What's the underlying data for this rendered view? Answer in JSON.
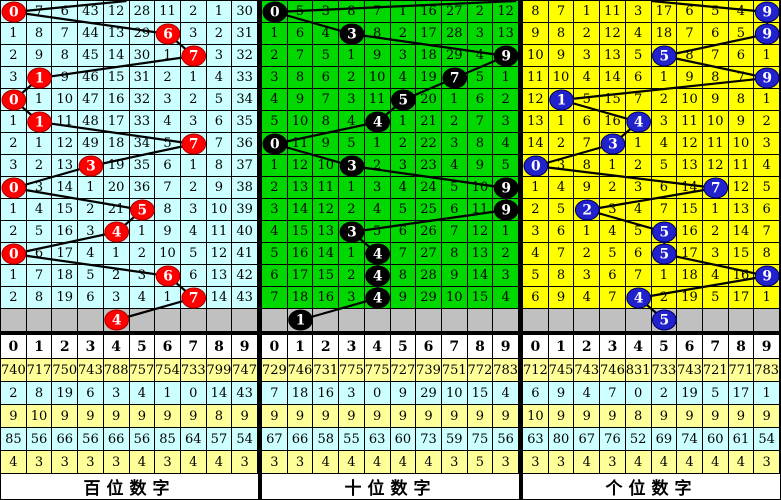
{
  "chart_data": {
    "type": "table",
    "title": "3D lottery digit trend chart (omission counts, drawn digit circled per row)",
    "digits_header": [
      "0",
      "1",
      "2",
      "3",
      "4",
      "5",
      "6",
      "7",
      "8",
      "9"
    ],
    "drawn_numbers_by_row": [
      "009",
      "639",
      "795",
      "179",
      "051",
      "144",
      "703",
      "330",
      "097",
      "592",
      "435",
      "045",
      "649",
      "744"
    ],
    "pending_number": "415",
    "panels": [
      {
        "name": "hundreds",
        "footer_label": "百位数字",
        "bg": "#ccffff",
        "circle": "#ff0000",
        "circle_edge": "#aa0000",
        "incoming_top_x": 127,
        "drawn_sequence": [
          0,
          6,
          7,
          1,
          0,
          1,
          7,
          3,
          0,
          5,
          4,
          0,
          6,
          7
        ],
        "pending_digit": 4,
        "grid_rows": [
          [
            "0",
            "7",
            "6",
            "43",
            "12",
            "28",
            "11",
            "2",
            "1",
            "30"
          ],
          [
            "1",
            "8",
            "7",
            "44",
            "13",
            "29",
            "6",
            "3",
            "2",
            "31"
          ],
          [
            "2",
            "9",
            "8",
            "45",
            "14",
            "30",
            "1",
            "7",
            "3",
            "32"
          ],
          [
            "3",
            "1",
            "9",
            "46",
            "15",
            "31",
            "2",
            "1",
            "4",
            "33"
          ],
          [
            "0",
            "1",
            "10",
            "47",
            "16",
            "32",
            "3",
            "2",
            "5",
            "34"
          ],
          [
            "1",
            "1",
            "11",
            "48",
            "17",
            "33",
            "4",
            "3",
            "6",
            "35"
          ],
          [
            "2",
            "1",
            "12",
            "49",
            "18",
            "34",
            "5",
            "7",
            "7",
            "36"
          ],
          [
            "3",
            "2",
            "13",
            "3",
            "19",
            "35",
            "6",
            "1",
            "8",
            "37"
          ],
          [
            "0",
            "3",
            "14",
            "1",
            "20",
            "36",
            "7",
            "2",
            "9",
            "38"
          ],
          [
            "1",
            "4",
            "15",
            "2",
            "21",
            "5",
            "8",
            "3",
            "10",
            "39"
          ],
          [
            "2",
            "5",
            "16",
            "3",
            "4",
            "1",
            "9",
            "4",
            "11",
            "40"
          ],
          [
            "0",
            "6",
            "17",
            "4",
            "1",
            "2",
            "10",
            "5",
            "12",
            "41"
          ],
          [
            "1",
            "7",
            "18",
            "5",
            "2",
            "3",
            "6",
            "6",
            "13",
            "42"
          ],
          [
            "2",
            "8",
            "19",
            "6",
            "3",
            "4",
            "1",
            "7",
            "14",
            "43"
          ]
        ],
        "stats_rows": [
          [
            "740",
            "717",
            "750",
            "743",
            "788",
            "757",
            "754",
            "733",
            "799",
            "747"
          ],
          [
            "2",
            "8",
            "19",
            "6",
            "3",
            "4",
            "1",
            "0",
            "14",
            "43"
          ],
          [
            "9",
            "10",
            "9",
            "9",
            "9",
            "9",
            "9",
            "9",
            "8",
            "9"
          ],
          [
            "85",
            "56",
            "66",
            "56",
            "66",
            "56",
            "85",
            "64",
            "57",
            "54"
          ],
          [
            "4",
            "3",
            "3",
            "3",
            "3",
            "4",
            "3",
            "4",
            "4",
            "3"
          ]
        ]
      },
      {
        "name": "tens",
        "footer_label": "十位数字",
        "bg": "#00d800",
        "circle": "#000000",
        "circle_edge": "#000000",
        "incoming_top_x": 257,
        "drawn_sequence": [
          0,
          3,
          9,
          7,
          5,
          4,
          0,
          3,
          9,
          9,
          3,
          4,
          4,
          4
        ],
        "pending_digit": 1,
        "grid_rows": [
          [
            "0",
            "5",
            "3",
            "8",
            "7",
            "1",
            "16",
            "27",
            "2",
            "12"
          ],
          [
            "1",
            "6",
            "4",
            "3",
            "8",
            "2",
            "17",
            "28",
            "3",
            "13"
          ],
          [
            "2",
            "7",
            "5",
            "1",
            "9",
            "3",
            "18",
            "29",
            "4",
            "9"
          ],
          [
            "3",
            "8",
            "6",
            "2",
            "10",
            "4",
            "19",
            "7",
            "5",
            "1"
          ],
          [
            "4",
            "9",
            "7",
            "3",
            "11",
            "5",
            "20",
            "1",
            "6",
            "2"
          ],
          [
            "5",
            "10",
            "8",
            "4",
            "4",
            "1",
            "21",
            "2",
            "7",
            "3"
          ],
          [
            "0",
            "11",
            "9",
            "5",
            "1",
            "2",
            "22",
            "3",
            "8",
            "4"
          ],
          [
            "1",
            "12",
            "10",
            "3",
            "2",
            "3",
            "23",
            "4",
            "9",
            "5"
          ],
          [
            "2",
            "13",
            "11",
            "1",
            "3",
            "4",
            "24",
            "5",
            "10",
            "9"
          ],
          [
            "3",
            "14",
            "12",
            "2",
            "4",
            "5",
            "25",
            "6",
            "11",
            "9"
          ],
          [
            "4",
            "15",
            "13",
            "3",
            "5",
            "6",
            "26",
            "7",
            "12",
            "1"
          ],
          [
            "5",
            "16",
            "14",
            "1",
            "4",
            "7",
            "27",
            "8",
            "13",
            "2"
          ],
          [
            "6",
            "17",
            "15",
            "2",
            "4",
            "8",
            "28",
            "9",
            "14",
            "3"
          ],
          [
            "7",
            "18",
            "16",
            "3",
            "4",
            "9",
            "29",
            "10",
            "15",
            "4"
          ]
        ],
        "stats_rows": [
          [
            "729",
            "746",
            "731",
            "775",
            "775",
            "727",
            "739",
            "751",
            "772",
            "783"
          ],
          [
            "7",
            "18",
            "16",
            "3",
            "0",
            "9",
            "29",
            "10",
            "15",
            "4"
          ],
          [
            "9",
            "9",
            "9",
            "9",
            "9",
            "9",
            "9",
            "9",
            "9",
            "9"
          ],
          [
            "67",
            "66",
            "58",
            "55",
            "63",
            "60",
            "73",
            "59",
            "75",
            "56"
          ],
          [
            "3",
            "3",
            "4",
            "4",
            "4",
            "4",
            "4",
            "3",
            "5",
            "3"
          ]
        ]
      },
      {
        "name": "units",
        "footer_label": "个位数字",
        "bg": "#ffff00",
        "circle": "#2222cc",
        "circle_edge": "#000066",
        "incoming_top_x": 130,
        "drawn_sequence": [
          9,
          9,
          5,
          9,
          1,
          4,
          3,
          0,
          7,
          2,
          5,
          5,
          9,
          4
        ],
        "pending_digit": 5,
        "grid_rows": [
          [
            "8",
            "7",
            "1",
            "11",
            "3",
            "17",
            "6",
            "5",
            "4",
            "9"
          ],
          [
            "9",
            "8",
            "2",
            "12",
            "4",
            "18",
            "7",
            "6",
            "5",
            "9"
          ],
          [
            "10",
            "9",
            "3",
            "13",
            "5",
            "5",
            "8",
            "7",
            "6",
            "1"
          ],
          [
            "11",
            "10",
            "4",
            "14",
            "6",
            "1",
            "9",
            "8",
            "7",
            "9"
          ],
          [
            "12",
            "1",
            "5",
            "15",
            "7",
            "2",
            "10",
            "9",
            "8",
            "1"
          ],
          [
            "13",
            "1",
            "6",
            "16",
            "4",
            "3",
            "11",
            "10",
            "9",
            "2"
          ],
          [
            "14",
            "2",
            "7",
            "3",
            "1",
            "4",
            "12",
            "11",
            "10",
            "3"
          ],
          [
            "0",
            "3",
            "8",
            "1",
            "2",
            "5",
            "13",
            "12",
            "11",
            "4"
          ],
          [
            "1",
            "4",
            "9",
            "2",
            "3",
            "6",
            "14",
            "7",
            "12",
            "5"
          ],
          [
            "2",
            "5",
            "2",
            "3",
            "4",
            "7",
            "15",
            "1",
            "13",
            "6"
          ],
          [
            "3",
            "6",
            "1",
            "4",
            "5",
            "5",
            "16",
            "2",
            "14",
            "7"
          ],
          [
            "4",
            "7",
            "2",
            "5",
            "6",
            "5",
            "17",
            "3",
            "15",
            "8"
          ],
          [
            "5",
            "8",
            "3",
            "6",
            "7",
            "1",
            "18",
            "4",
            "16",
            "9"
          ],
          [
            "6",
            "9",
            "4",
            "7",
            "4",
            "2",
            "19",
            "5",
            "17",
            "1"
          ]
        ],
        "stats_rows": [
          [
            "712",
            "745",
            "743",
            "746",
            "831",
            "733",
            "743",
            "721",
            "771",
            "783"
          ],
          [
            "6",
            "9",
            "4",
            "7",
            "0",
            "2",
            "19",
            "5",
            "17",
            "1"
          ],
          [
            "10",
            "9",
            "9",
            "9",
            "8",
            "9",
            "9",
            "9",
            "9",
            "9"
          ],
          [
            "63",
            "80",
            "67",
            "76",
            "52",
            "69",
            "74",
            "60",
            "61",
            "54"
          ],
          [
            "3",
            "3",
            "4",
            "3",
            "4",
            "4",
            "4",
            "4",
            "4",
            "3"
          ]
        ]
      }
    ]
  },
  "colors": {
    "pending_row_bg": "#c0c0c0",
    "stats_row_bgs": [
      "#ffff99",
      "#ccffff",
      "#ffff99",
      "#ccffff",
      "#ffff99"
    ],
    "header_bg": "#ffffff",
    "grid_line": "#000000",
    "trend_line": "#000000",
    "circle_text": "#ffffff"
  }
}
